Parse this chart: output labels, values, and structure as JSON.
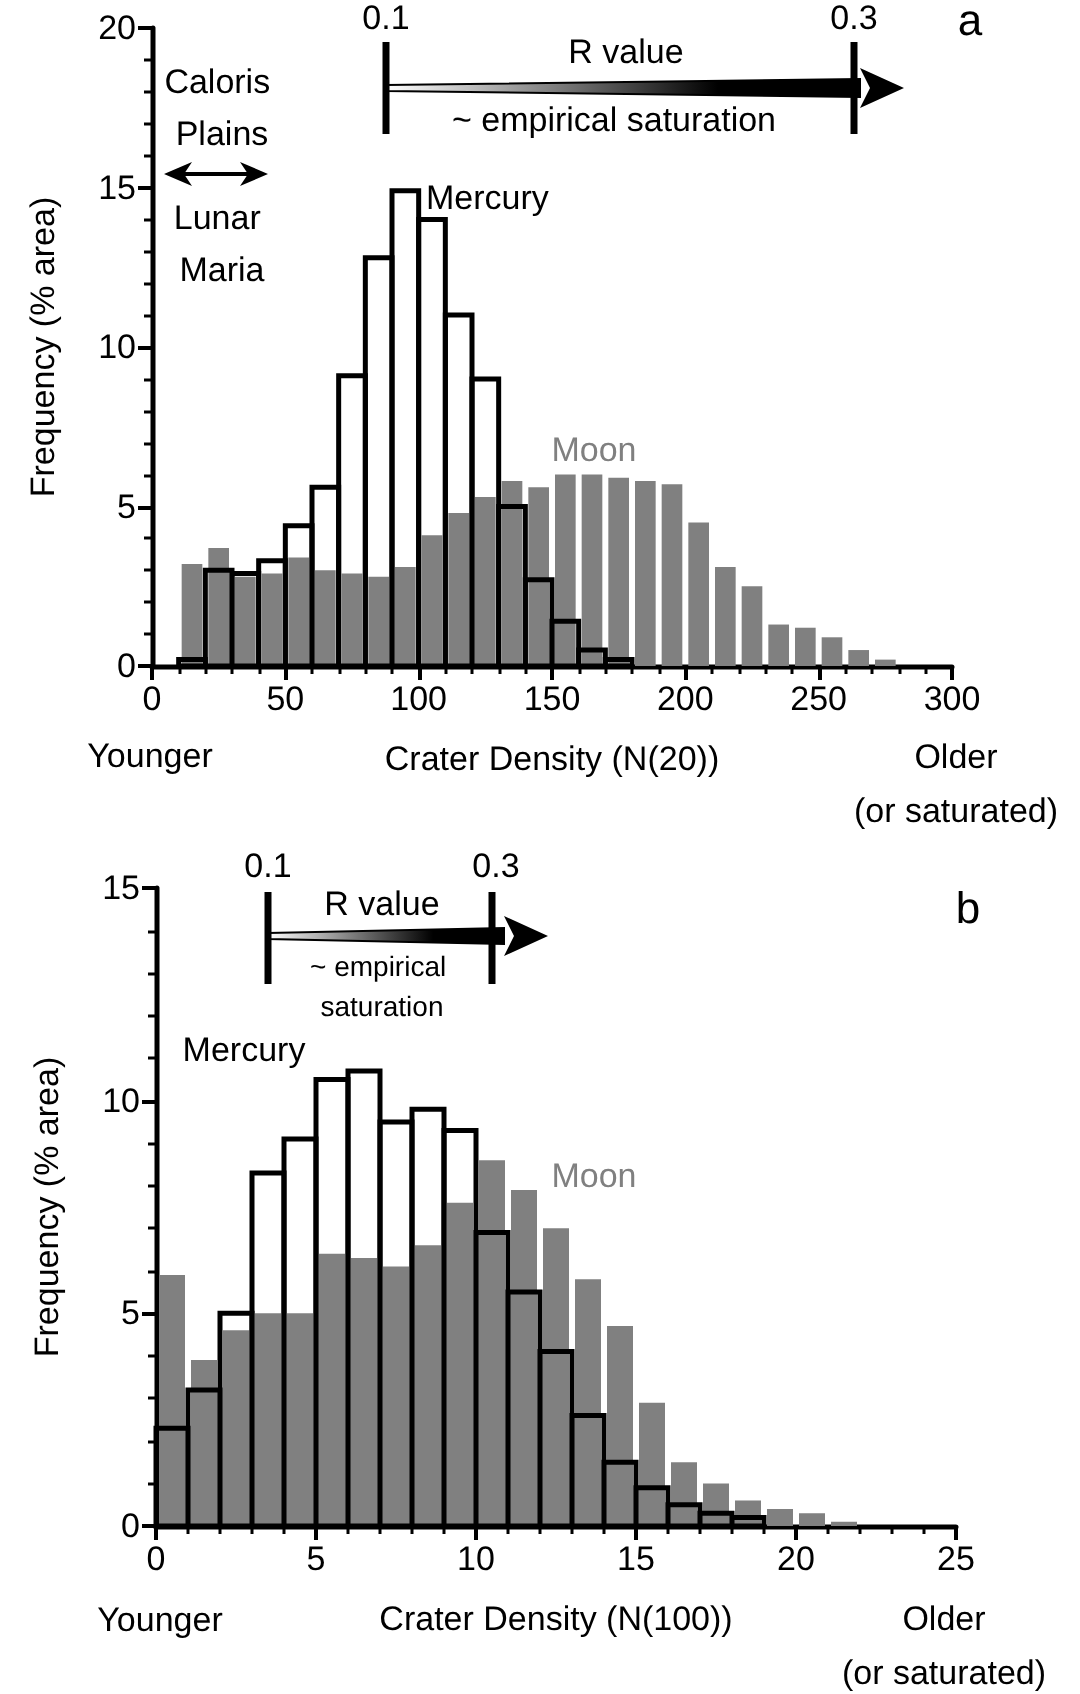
{
  "chart_data": [
    {
      "type": "histogram",
      "xlabel": "Crater Density (N(20))",
      "ylabel": "Frequency (% area)",
      "bins": [
        0,
        10,
        20,
        30,
        40,
        50,
        60,
        70,
        80,
        90,
        100,
        110,
        120,
        130,
        140,
        150,
        160,
        170,
        180,
        190,
        200,
        210,
        220,
        230,
        240,
        250,
        260,
        270,
        280,
        290,
        300
      ],
      "series": [
        {
          "name": "Moon",
          "color": "#808080",
          "values": [
            null,
            3.2,
            3.7,
            2.8,
            2.9,
            3.4,
            3.0,
            2.9,
            2.8,
            3.1,
            4.1,
            4.8,
            5.3,
            5.8,
            5.6,
            6.0,
            6.0,
            5.9,
            5.8,
            5.7,
            4.5,
            3.1,
            2.5,
            1.3,
            1.2,
            0.9,
            0.5,
            0.2,
            null,
            null
          ]
        },
        {
          "name": "Mercury",
          "color": "#000000",
          "values": [
            null,
            0.2,
            3.0,
            2.9,
            3.3,
            4.4,
            5.6,
            9.1,
            12.8,
            14.9,
            14.0,
            11.0,
            9.0,
            5.0,
            2.7,
            1.4,
            0.5,
            0.2,
            null,
            null,
            null,
            null,
            null,
            null,
            null,
            null,
            null,
            null,
            null,
            null
          ]
        }
      ],
      "xlim": [
        0,
        300
      ],
      "xticks": [
        0,
        50,
        100,
        150,
        200,
        250,
        300
      ],
      "ylim": [
        0,
        20
      ],
      "yticks": [
        0,
        5,
        10,
        15,
        20
      ],
      "annotations": [
        "0.1",
        "0.3",
        "R value",
        "~ empirical saturation",
        "Caloris Plains",
        "Lunar Maria",
        "Younger",
        "Older (or saturated)",
        "a"
      ]
    },
    {
      "type": "histogram",
      "xlabel": "Crater Density (N(100))",
      "ylabel": "Frequency (% area)",
      "bins": [
        0,
        1,
        2,
        3,
        4,
        5,
        6,
        7,
        8,
        9,
        10,
        11,
        12,
        13,
        14,
        15,
        16,
        17,
        18,
        19,
        20,
        21,
        22,
        23,
        24,
        25
      ],
      "series": [
        {
          "name": "Moon",
          "color": "#808080",
          "values": [
            5.9,
            3.9,
            4.6,
            5.0,
            5.0,
            6.4,
            6.3,
            6.1,
            6.6,
            7.6,
            8.6,
            7.9,
            7.0,
            5.8,
            4.7,
            2.9,
            1.5,
            1.0,
            0.6,
            0.4,
            0.3,
            0.1,
            null,
            null,
            null
          ]
        },
        {
          "name": "Mercury",
          "color": "#000000",
          "values": [
            2.3,
            3.2,
            5.0,
            8.3,
            9.1,
            10.5,
            10.7,
            9.5,
            9.8,
            9.3,
            6.9,
            5.5,
            4.1,
            2.6,
            1.5,
            0.9,
            0.5,
            0.3,
            0.2,
            null,
            null,
            null,
            null,
            null,
            null
          ]
        }
      ],
      "xlim": [
        0,
        25
      ],
      "xticks": [
        0,
        5,
        10,
        15,
        20,
        25
      ],
      "ylim": [
        0,
        15
      ],
      "yticks": [
        0,
        5,
        10,
        15
      ],
      "annotations": [
        "0.1",
        "0.3",
        "R value",
        "~ empirical saturation",
        "Younger",
        "Older (or saturated)",
        "b"
      ]
    }
  ]
}
